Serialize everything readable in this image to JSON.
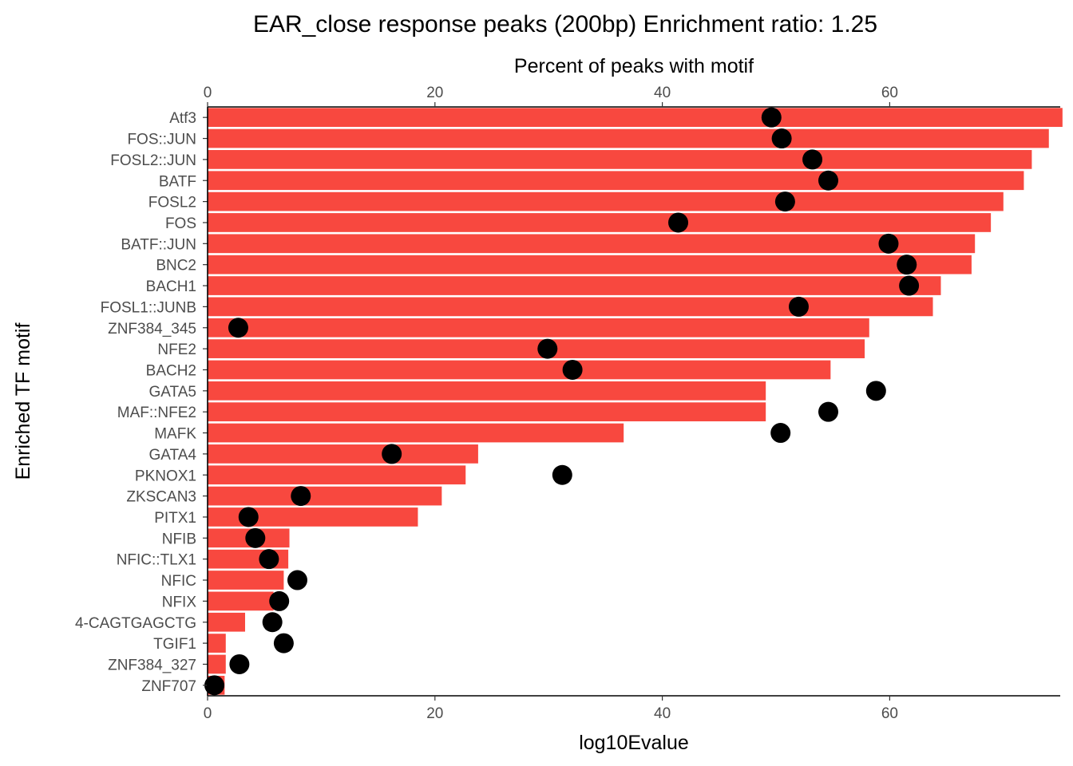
{
  "chart_data": {
    "type": "bar",
    "title": "EAR_close response peaks (200bp) Enrichment ratio: 1.25",
    "xlabel": "log10Evalue",
    "x2label": "Percent of peaks with motif",
    "ylabel": "Enriched TF motif",
    "xlim": [
      0,
      75
    ],
    "xticks": [
      0,
      20,
      40,
      60
    ],
    "colors": {
      "bar": "#f8483f",
      "point": "#000000"
    },
    "categories": [
      "Atf3",
      "FOS::JUN",
      "FOSL2::JUN",
      "BATF",
      "FOSL2",
      "FOS",
      "BATF::JUN",
      "BNC2",
      "BACH1",
      "FOSL1::JUNB",
      "ZNF384_345",
      "NFE2",
      "BACH2",
      "GATA5",
      "MAF::NFE2",
      "MAFK",
      "GATA4",
      "PKNOX1",
      "ZKSCAN3",
      "PITX1",
      "NFIB",
      "NFIC::TLX1",
      "NFIC",
      "NFIX",
      "4-CAGTGAGCTG",
      "TGIF1",
      "ZNF384_327",
      "ZNF707"
    ],
    "series": [
      {
        "name": "log10Evalue",
        "kind": "bar",
        "values": [
          75.2,
          74.0,
          72.5,
          71.8,
          70.0,
          68.9,
          67.5,
          67.2,
          64.5,
          63.8,
          58.2,
          57.8,
          54.8,
          49.1,
          49.1,
          36.6,
          23.8,
          22.7,
          20.6,
          18.5,
          7.2,
          7.1,
          6.7,
          5.8,
          3.3,
          1.6,
          1.6,
          1.5
        ]
      },
      {
        "name": "Percent of peaks with motif",
        "kind": "point",
        "values": [
          49.6,
          50.5,
          53.2,
          54.6,
          50.8,
          41.4,
          59.9,
          61.5,
          61.7,
          52.0,
          2.7,
          29.9,
          32.1,
          58.8,
          54.6,
          50.4,
          16.2,
          31.2,
          8.2,
          3.6,
          4.2,
          5.4,
          7.9,
          6.3,
          5.7,
          6.7,
          2.8,
          0.6
        ]
      }
    ]
  }
}
